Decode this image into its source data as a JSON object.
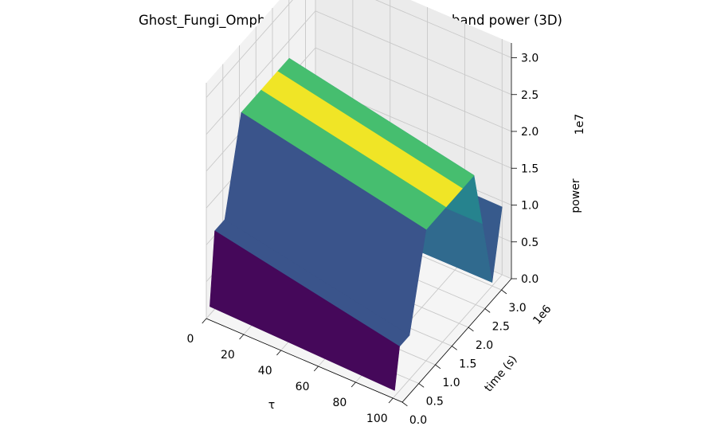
{
  "chart_data": {
    "type": "surface3d",
    "title": "Ghost_Fungi_Omphalotus_nidiformis | diff_1 | τ-band power (3D)",
    "xlabel": "τ",
    "ylabel": "time (s)",
    "zlabel": "power",
    "x_ticks": [
      "0",
      "20",
      "40",
      "60",
      "80",
      "100"
    ],
    "y_ticks": [
      "0.0",
      "0.5",
      "1.0",
      "1.5",
      "2.0",
      "2.5",
      "3.0"
    ],
    "z_ticks": [
      "0.0",
      "0.5",
      "1.0",
      "1.5",
      "2.0",
      "2.5",
      "3.0"
    ],
    "y_offset": "1e6",
    "z_offset": "1e7",
    "xlim": [
      0,
      105
    ],
    "ylim": [
      0,
      3.3
    ],
    "zlim": [
      0,
      3.2
    ],
    "colormap": "viridis",
    "grid": true,
    "surface_profile": {
      "tau_range": [
        1,
        100
      ],
      "time_start": [
        0.05,
        0.2,
        0.5,
        1.0,
        1.6,
        2.1,
        2.45,
        2.7,
        3.0,
        3.3
      ],
      "power_tau1": [
        0.15,
        1.1,
        1.1,
        2.3,
        2.3,
        2.3,
        2.3,
        1.0,
        0.05,
        0.95
      ],
      "power_tau100": [
        0.08,
        0.6,
        0.6,
        1.78,
        1.78,
        1.78,
        1.78,
        1.0,
        0.05,
        0.92
      ],
      "color_value": [
        0.02,
        0.26,
        0.26,
        0.7,
        0.98,
        0.7,
        0.45,
        0.34,
        0.28,
        0.24
      ]
    }
  }
}
